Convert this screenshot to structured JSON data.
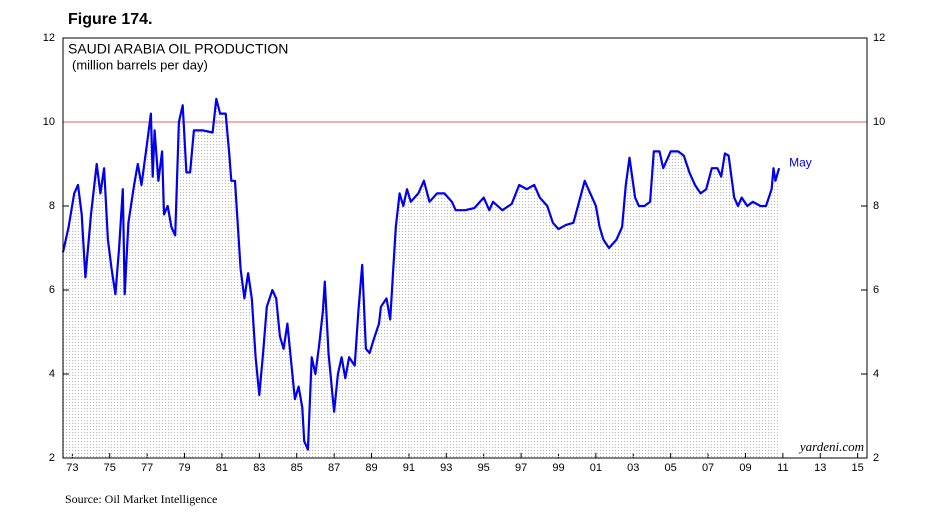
{
  "figure_label": "Figure 174.",
  "source": "Source: Oil Market Intelligence",
  "chart_data": {
    "type": "line",
    "title": "SAUDI ARABIA OIL PRODUCTION",
    "subtitle": "(million barrels per day)",
    "watermark": "yardeni.com",
    "end_annotation": "May",
    "x": [
      1973.0,
      1973.3,
      1973.6,
      1973.8,
      1974.0,
      1974.2,
      1974.5,
      1974.8,
      1975.0,
      1975.2,
      1975.4,
      1975.6,
      1975.8,
      1976.0,
      1976.2,
      1976.3,
      1976.5,
      1976.8,
      1977.0,
      1977.2,
      1977.5,
      1977.7,
      1977.8,
      1977.9,
      1978.1,
      1978.3,
      1978.4,
      1978.6,
      1978.8,
      1979.0,
      1979.2,
      1979.4,
      1979.6,
      1979.8,
      1980.0,
      1980.5,
      1981.0,
      1981.2,
      1981.4,
      1981.7,
      1981.9,
      1982.0,
      1982.2,
      1982.5,
      1982.7,
      1982.9,
      1983.1,
      1983.3,
      1983.5,
      1983.7,
      1983.9,
      1984.2,
      1984.4,
      1984.6,
      1984.8,
      1985.0,
      1985.2,
      1985.4,
      1985.6,
      1985.8,
      1985.9,
      1986.1,
      1986.3,
      1986.5,
      1986.7,
      1986.9,
      1987.0,
      1987.2,
      1987.5,
      1987.7,
      1987.9,
      1988.1,
      1988.3,
      1988.6,
      1988.8,
      1989.0,
      1989.2,
      1989.4,
      1989.6,
      1989.9,
      1990.0,
      1990.3,
      1990.5,
      1990.8,
      1991.0,
      1991.2,
      1991.4,
      1991.6,
      1992.0,
      1992.3,
      1992.6,
      1993.0,
      1993.4,
      1993.8,
      1994.0,
      1994.5,
      1995.0,
      1995.5,
      1995.8,
      1996.0,
      1996.5,
      1997.0,
      1997.4,
      1997.8,
      1998.2,
      1998.5,
      1998.9,
      1999.2,
      1999.5,
      1999.9,
      2000.3,
      2000.6,
      2000.9,
      2001.2,
      2001.5,
      2001.7,
      2001.9,
      2002.2,
      2002.6,
      2002.9,
      2003.1,
      2003.3,
      2003.6,
      2003.8,
      2004.1,
      2004.4,
      2004.6,
      2004.9,
      2005.1,
      2005.5,
      2005.9,
      2006.2,
      2006.5,
      2006.8,
      2007.1,
      2007.4,
      2007.7,
      2008.0,
      2008.2,
      2008.4,
      2008.6,
      2008.9,
      2009.1,
      2009.3,
      2009.6,
      2009.9,
      2010.3,
      2010.6,
      2010.9,
      2011.0,
      2011.1,
      2011.3
    ],
    "series": [
      {
        "name": "Saudi Arabia oil production",
        "color": "#0000ee",
        "values": [
          6.9,
          7.5,
          8.3,
          8.5,
          7.8,
          6.3,
          7.8,
          9.0,
          8.3,
          8.9,
          7.2,
          6.5,
          5.9,
          7.0,
          8.4,
          5.9,
          7.6,
          8.5,
          9.0,
          8.5,
          9.5,
          10.2,
          8.7,
          9.8,
          8.6,
          9.3,
          7.8,
          8.0,
          7.5,
          7.3,
          10.0,
          10.4,
          8.8,
          8.8,
          9.8,
          9.8,
          9.75,
          10.55,
          10.2,
          10.2,
          9.2,
          8.6,
          8.6,
          6.5,
          5.8,
          6.4,
          5.8,
          4.4,
          3.5,
          4.5,
          5.6,
          6.0,
          5.8,
          4.9,
          4.6,
          5.2,
          4.3,
          3.4,
          3.7,
          3.2,
          2.4,
          2.2,
          4.4,
          4.0,
          4.7,
          5.5,
          6.2,
          4.5,
          3.1,
          4.0,
          4.4,
          3.9,
          4.4,
          4.2,
          5.5,
          6.6,
          4.6,
          4.5,
          4.8,
          5.2,
          5.6,
          5.8,
          5.3,
          7.5,
          8.3,
          8.0,
          8.4,
          8.1,
          8.3,
          8.6,
          8.1,
          8.3,
          8.3,
          8.1,
          7.9,
          7.9,
          7.95,
          8.2,
          7.9,
          8.1,
          7.9,
          8.05,
          8.5,
          8.4,
          8.5,
          8.2,
          8.0,
          7.6,
          7.45,
          7.55,
          7.6,
          8.1,
          8.6,
          8.3,
          8.0,
          7.5,
          7.2,
          7.0,
          7.2,
          7.5,
          8.5,
          9.15,
          8.2,
          8.0,
          8.0,
          8.1,
          9.3,
          9.3,
          8.9,
          9.3,
          9.3,
          9.2,
          8.8,
          8.5,
          8.3,
          8.4,
          8.9,
          8.9,
          8.7,
          9.25,
          9.2,
          8.2,
          8.0,
          8.2,
          8.0,
          8.1,
          8.0,
          8.0,
          8.4,
          8.9,
          8.6,
          8.9
        ]
      }
    ],
    "reference_line": {
      "value": 10,
      "color": "#e06060"
    },
    "xlim": [
      1973,
      2016
    ],
    "xticks": [
      {
        "value": 1973.5,
        "label": "73"
      },
      {
        "value": 1975.5,
        "label": "75"
      },
      {
        "value": 1977.5,
        "label": "77"
      },
      {
        "value": 1979.5,
        "label": "79"
      },
      {
        "value": 1981.5,
        "label": "81"
      },
      {
        "value": 1983.5,
        "label": "83"
      },
      {
        "value": 1985.5,
        "label": "85"
      },
      {
        "value": 1987.5,
        "label": "87"
      },
      {
        "value": 1989.5,
        "label": "89"
      },
      {
        "value": 1991.5,
        "label": "91"
      },
      {
        "value": 1993.5,
        "label": "93"
      },
      {
        "value": 1995.5,
        "label": "95"
      },
      {
        "value": 1997.5,
        "label": "97"
      },
      {
        "value": 1999.5,
        "label": "99"
      },
      {
        "value": 2001.5,
        "label": "01"
      },
      {
        "value": 2003.5,
        "label": "03"
      },
      {
        "value": 2005.5,
        "label": "05"
      },
      {
        "value": 2007.5,
        "label": "07"
      },
      {
        "value": 2009.5,
        "label": "09"
      },
      {
        "value": 2011.5,
        "label": "11"
      },
      {
        "value": 2013.5,
        "label": "13"
      },
      {
        "value": 2015.5,
        "label": "15"
      }
    ],
    "ylim": [
      2,
      12
    ],
    "yticks": [
      2,
      4,
      6,
      8,
      10,
      12
    ],
    "area_fill": true
  }
}
